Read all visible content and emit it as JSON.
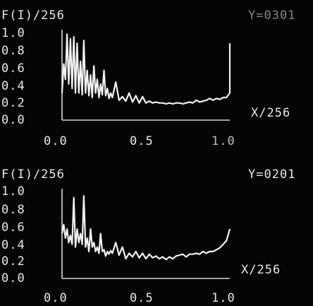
{
  "chart_data": [
    {
      "type": "line",
      "title": "F(I)/256",
      "corner_label": "Y=0301",
      "xlabel": "X/256",
      "ylabel": "",
      "xlim": [
        0.0,
        1.0
      ],
      "ylim": [
        0.0,
        1.0
      ],
      "x_ticks": [
        "0.0",
        "0.5",
        "1.0"
      ],
      "y_ticks": [
        "1.0",
        "0.8",
        "0.6",
        "0.4",
        "0.2",
        "0.0"
      ],
      "series": [
        {
          "x": [
            0.0,
            0.01,
            0.02,
            0.03,
            0.04,
            0.05,
            0.06,
            0.07,
            0.08,
            0.09,
            0.1,
            0.11,
            0.12,
            0.13,
            0.14,
            0.15,
            0.16,
            0.17,
            0.18,
            0.19,
            0.2,
            0.21,
            0.22,
            0.23,
            0.24,
            0.25,
            0.26,
            0.27,
            0.28,
            0.29,
            0.3,
            0.32,
            0.34,
            0.36,
            0.38,
            0.4,
            0.42,
            0.44,
            0.46,
            0.48,
            0.5,
            0.52,
            0.54,
            0.56,
            0.58,
            0.6,
            0.62,
            0.64,
            0.66,
            0.68,
            0.7,
            0.72,
            0.74,
            0.76,
            0.78,
            0.8,
            0.82,
            0.84,
            0.86,
            0.88,
            0.9,
            0.92,
            0.94,
            0.96,
            0.98,
            1.0,
            1.0
          ],
          "y": [
            0.3,
            0.62,
            0.45,
            0.95,
            0.4,
            0.9,
            0.35,
            0.92,
            0.3,
            0.85,
            0.3,
            0.65,
            0.28,
            0.88,
            0.3,
            0.55,
            0.27,
            0.5,
            0.25,
            0.6,
            0.3,
            0.45,
            0.25,
            0.4,
            0.28,
            0.55,
            0.27,
            0.35,
            0.24,
            0.3,
            0.25,
            0.42,
            0.22,
            0.26,
            0.21,
            0.3,
            0.2,
            0.27,
            0.19,
            0.26,
            0.19,
            0.21,
            0.19,
            0.2,
            0.19,
            0.19,
            0.18,
            0.19,
            0.18,
            0.19,
            0.19,
            0.18,
            0.19,
            0.2,
            0.19,
            0.22,
            0.2,
            0.21,
            0.22,
            0.24,
            0.22,
            0.24,
            0.23,
            0.25,
            0.25,
            0.3,
            0.85
          ]
        }
      ]
    },
    {
      "type": "line",
      "title": "F(I)/256",
      "corner_label": "Y=0201",
      "xlabel": "X/256",
      "ylabel": "",
      "xlim": [
        0.0,
        1.0
      ],
      "ylim": [
        0.0,
        1.0
      ],
      "x_ticks": [
        "0.0",
        "0.5",
        "1.0"
      ],
      "y_ticks": [
        "1.0",
        "0.8",
        "0.6",
        "0.4",
        "0.2",
        "0.0"
      ],
      "series": [
        {
          "x": [
            0.0,
            0.01,
            0.02,
            0.03,
            0.04,
            0.05,
            0.06,
            0.07,
            0.08,
            0.09,
            0.1,
            0.11,
            0.12,
            0.13,
            0.14,
            0.15,
            0.16,
            0.17,
            0.18,
            0.19,
            0.2,
            0.21,
            0.22,
            0.23,
            0.24,
            0.25,
            0.26,
            0.27,
            0.28,
            0.29,
            0.3,
            0.32,
            0.34,
            0.36,
            0.38,
            0.4,
            0.42,
            0.44,
            0.46,
            0.48,
            0.5,
            0.52,
            0.54,
            0.56,
            0.58,
            0.6,
            0.62,
            0.64,
            0.66,
            0.68,
            0.7,
            0.72,
            0.74,
            0.76,
            0.78,
            0.8,
            0.82,
            0.84,
            0.86,
            0.88,
            0.9,
            0.92,
            0.94,
            0.96,
            0.98,
            1.0
          ],
          "y": [
            0.5,
            0.6,
            0.45,
            0.55,
            0.4,
            0.48,
            0.38,
            0.9,
            0.35,
            0.55,
            0.4,
            0.5,
            0.38,
            0.92,
            0.35,
            0.45,
            0.3,
            0.55,
            0.35,
            0.4,
            0.3,
            0.35,
            0.28,
            0.5,
            0.3,
            0.32,
            0.25,
            0.3,
            0.27,
            0.31,
            0.28,
            0.4,
            0.26,
            0.35,
            0.22,
            0.28,
            0.24,
            0.3,
            0.23,
            0.28,
            0.22,
            0.27,
            0.23,
            0.25,
            0.22,
            0.24,
            0.21,
            0.24,
            0.22,
            0.25,
            0.26,
            0.27,
            0.24,
            0.27,
            0.27,
            0.28,
            0.27,
            0.3,
            0.28,
            0.3,
            0.3,
            0.32,
            0.34,
            0.38,
            0.42,
            0.55
          ]
        }
      ]
    }
  ]
}
